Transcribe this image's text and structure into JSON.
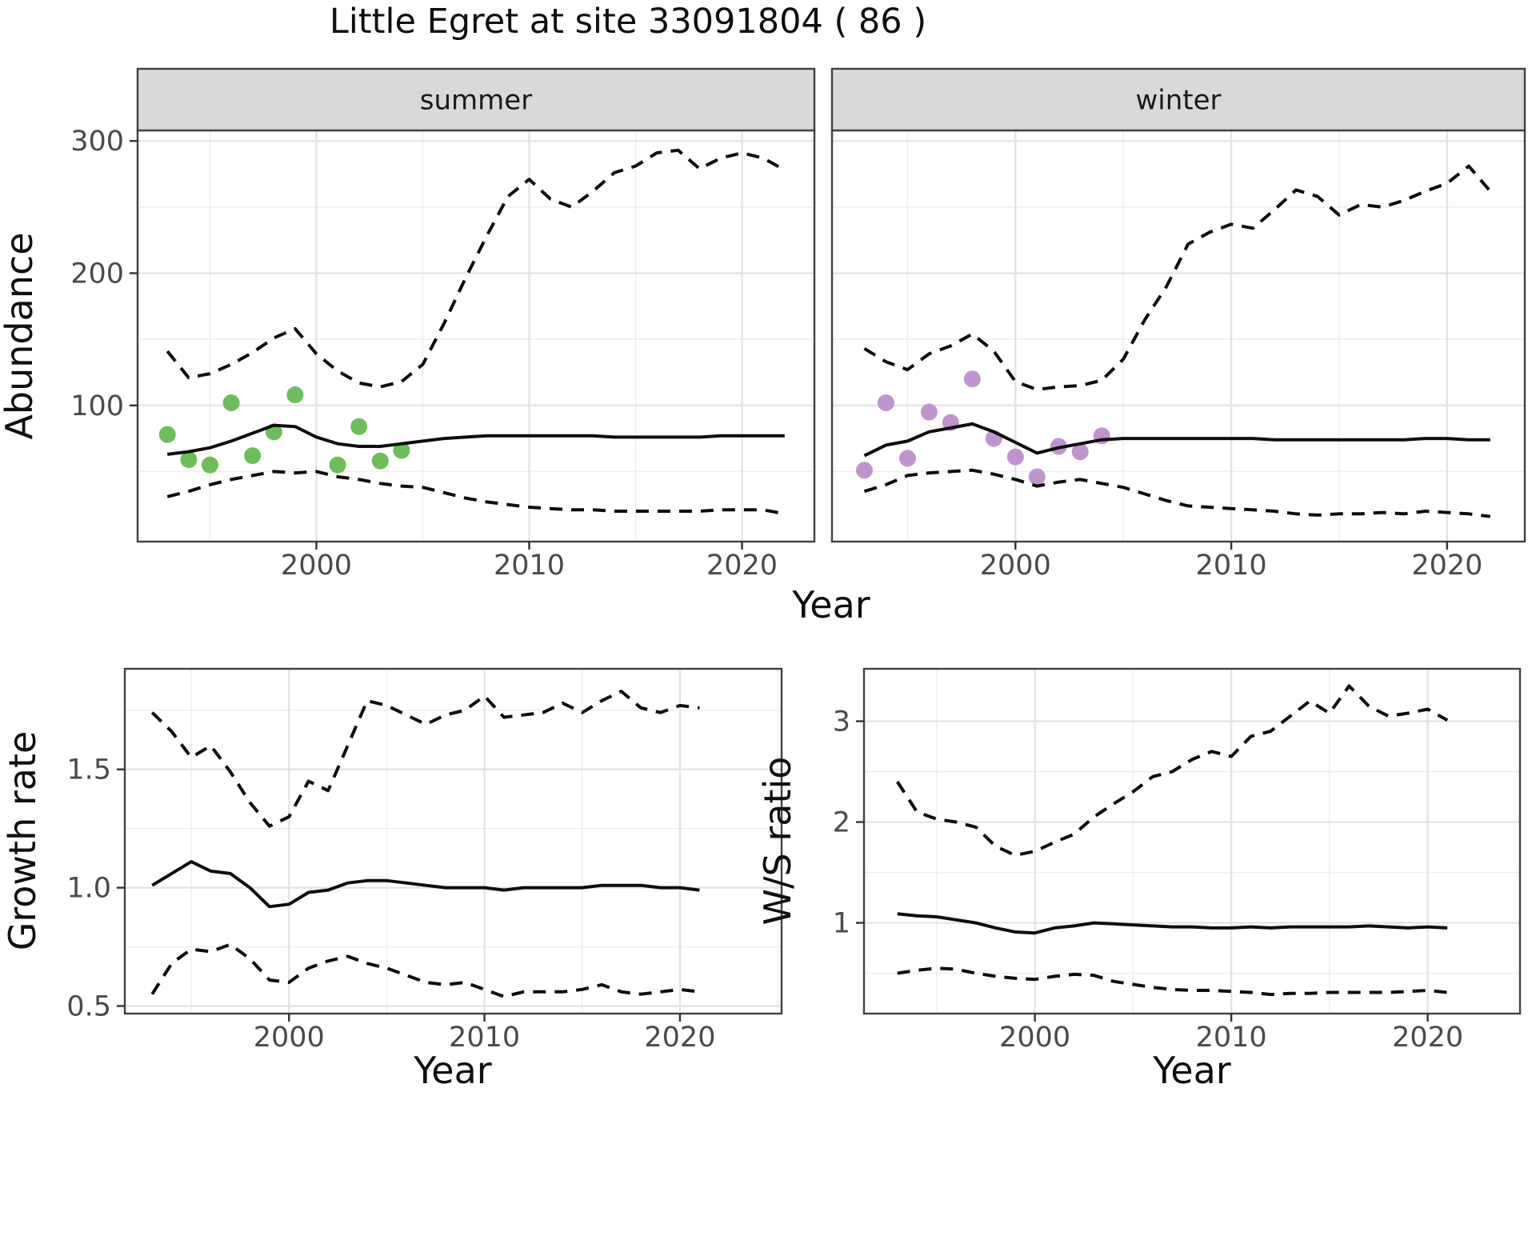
{
  "title": "Little Egret at site 33091804 ( 86 )",
  "colors": {
    "summer_points": "#6dbe5b",
    "winter_points": "#bf94cd",
    "line": "#0d0d0d",
    "strip_bg": "#d9d9d9",
    "panel_border": "#404040",
    "grid_major": "#e2e2e2",
    "grid_minor": "#eeeeee",
    "tick_label": "#4a4a4a",
    "title_text": "#0f0f0f"
  },
  "chart_data": [
    {
      "id": "abundance-summer",
      "type": "line",
      "facet_label": "summer",
      "ylabel": "Abundance",
      "xlabel": "Year",
      "x_domain": [
        1991.6,
        2023.4
      ],
      "y_domain": [
        -3,
        308
      ],
      "x_ticks": {
        "values": [
          2000,
          2010,
          2020
        ],
        "labels": [
          "2000",
          "2010",
          "2020"
        ]
      },
      "y_ticks": {
        "values": [
          100,
          200,
          300
        ],
        "labels": [
          "100",
          "200",
          "300"
        ]
      },
      "x_minor": [
        1995,
        2005,
        2015
      ],
      "y_minor": [
        50,
        150,
        250
      ],
      "grid": true,
      "legend": "none",
      "series": [
        {
          "name": "observations",
          "style": "points",
          "color": "#6dbe5b",
          "x": [
            1993,
            1994,
            1995,
            1996,
            1997,
            1998,
            1999,
            2001,
            2002,
            2003,
            2004
          ],
          "y": [
            78,
            59,
            55,
            102,
            62,
            80,
            108,
            55,
            84,
            58,
            66
          ]
        },
        {
          "name": "upper-ci",
          "style": "dashed",
          "x": [
            1993,
            1994,
            1995,
            1996,
            1997,
            1998,
            1999,
            2000,
            2001,
            2002,
            2003,
            2004,
            2005,
            2006,
            2007,
            2008,
            2009,
            2010,
            2011,
            2012,
            2013,
            2014,
            2015,
            2016,
            2017,
            2018,
            2019,
            2020,
            2021,
            2022
          ],
          "y": [
            141,
            121,
            124,
            131,
            140,
            151,
            158,
            139,
            126,
            117,
            114,
            118,
            131,
            162,
            196,
            228,
            258,
            271,
            256,
            250,
            262,
            276,
            281,
            291,
            293,
            279,
            287,
            291,
            287,
            278
          ]
        },
        {
          "name": "lower-ci",
          "style": "dashed",
          "x": [
            1993,
            1994,
            1995,
            1996,
            1997,
            1998,
            1999,
            2000,
            2001,
            2002,
            2003,
            2004,
            2005,
            2006,
            2007,
            2008,
            2009,
            2010,
            2011,
            2012,
            2013,
            2014,
            2015,
            2016,
            2017,
            2018,
            2019,
            2020,
            2021,
            2022
          ],
          "y": [
            31,
            35,
            40,
            44,
            47,
            50,
            49,
            50,
            46,
            44,
            41,
            39,
            38,
            34,
            30,
            27,
            25,
            23,
            22,
            21,
            21,
            20,
            20,
            20,
            20,
            20,
            21,
            21,
            21,
            18
          ]
        },
        {
          "name": "median",
          "style": "solid",
          "x": [
            1993,
            1994,
            1995,
            1996,
            1997,
            1998,
            1999,
            2000,
            2001,
            2002,
            2003,
            2004,
            2005,
            2006,
            2007,
            2008,
            2009,
            2010,
            2011,
            2012,
            2013,
            2014,
            2015,
            2016,
            2017,
            2018,
            2019,
            2020,
            2021,
            2022
          ],
          "y": [
            63,
            65,
            68,
            73,
            79,
            85,
            84,
            76,
            71,
            69,
            69,
            71,
            73,
            75,
            76,
            77,
            77,
            77,
            77,
            77,
            77,
            76,
            76,
            76,
            76,
            76,
            77,
            77,
            77,
            77
          ]
        }
      ]
    },
    {
      "id": "abundance-winter",
      "type": "line",
      "facet_label": "winter",
      "ylabel": "",
      "xlabel": "",
      "x_domain": [
        1991.5,
        2023.6
      ],
      "y_domain": [
        -3,
        308
      ],
      "x_ticks": {
        "values": [
          2000,
          2010,
          2020
        ],
        "labels": [
          "2000",
          "2010",
          "2020"
        ]
      },
      "y_ticks": {
        "values": [
          100,
          200,
          300
        ],
        "labels": []
      },
      "x_minor": [
        1995,
        2005,
        2015
      ],
      "y_minor": [
        50,
        150,
        250
      ],
      "grid": true,
      "legend": "none",
      "series": [
        {
          "name": "observations",
          "style": "points",
          "color": "#bf94cd",
          "x": [
            1993,
            1994,
            1995,
            1996,
            1997,
            1998,
            1999,
            2000,
            2001,
            2002,
            2003,
            2004
          ],
          "y": [
            51,
            102,
            60,
            95,
            87,
            120,
            75,
            61,
            46,
            69,
            65,
            77
          ]
        },
        {
          "name": "upper-ci",
          "style": "dashed",
          "x": [
            1993,
            1994,
            1995,
            1996,
            1997,
            1998,
            1999,
            2000,
            2001,
            2002,
            2003,
            2004,
            2005,
            2006,
            2007,
            2008,
            2009,
            2010,
            2011,
            2012,
            2013,
            2014,
            2015,
            2016,
            2017,
            2018,
            2019,
            2020,
            2021,
            2022
          ],
          "y": [
            143,
            133,
            127,
            139,
            145,
            154,
            141,
            118,
            112,
            114,
            115,
            119,
            135,
            165,
            190,
            222,
            231,
            237,
            234,
            248,
            263,
            258,
            244,
            252,
            250,
            255,
            262,
            268,
            281,
            262
          ]
        },
        {
          "name": "lower-ci",
          "style": "dashed",
          "x": [
            1993,
            1994,
            1995,
            1996,
            1997,
            1998,
            1999,
            2000,
            2001,
            2002,
            2003,
            2004,
            2005,
            2006,
            2007,
            2008,
            2009,
            2010,
            2011,
            2012,
            2013,
            2014,
            2015,
            2016,
            2017,
            2018,
            2019,
            2020,
            2021,
            2022
          ],
          "y": [
            35,
            40,
            47,
            49,
            50,
            51,
            48,
            44,
            39,
            42,
            44,
            41,
            38,
            33,
            28,
            24,
            23,
            22,
            21,
            20,
            18,
            17,
            18,
            18,
            19,
            18,
            20,
            19,
            18,
            16
          ]
        },
        {
          "name": "median",
          "style": "solid",
          "x": [
            1993,
            1994,
            1995,
            1996,
            1997,
            1998,
            1999,
            2000,
            2001,
            2002,
            2003,
            2004,
            2005,
            2006,
            2007,
            2008,
            2009,
            2010,
            2011,
            2012,
            2013,
            2014,
            2015,
            2016,
            2017,
            2018,
            2019,
            2020,
            2021,
            2022
          ],
          "y": [
            62,
            70,
            73,
            80,
            83,
            86,
            80,
            72,
            64,
            68,
            71,
            74,
            75,
            75,
            75,
            75,
            75,
            75,
            75,
            74,
            74,
            74,
            74,
            74,
            74,
            74,
            75,
            75,
            74,
            74
          ]
        }
      ]
    },
    {
      "id": "growth-rate",
      "type": "line",
      "facet_label": null,
      "ylabel": "Growth rate",
      "xlabel": "Year",
      "x_domain": [
        1991.6,
        2025.2
      ],
      "y_domain": [
        0.468,
        1.925
      ],
      "x_ticks": {
        "values": [
          2000,
          2010,
          2020
        ],
        "labels": [
          "2000",
          "2010",
          "2020"
        ]
      },
      "y_ticks": {
        "values": [
          0.5,
          1.0,
          1.5
        ],
        "labels": [
          "0.5",
          "1.0",
          "1.5"
        ]
      },
      "x_minor": [
        1995,
        2005,
        2015,
        2025
      ],
      "y_minor": [
        0.75,
        1.25,
        1.75
      ],
      "grid": true,
      "legend": "none",
      "series": [
        {
          "name": "upper-ci",
          "style": "dashed",
          "x": [
            1993,
            1994,
            1995,
            1996,
            1997,
            1998,
            1999,
            2000,
            2001,
            2002,
            2003,
            2004,
            2005,
            2006,
            2007,
            2008,
            2009,
            2010,
            2011,
            2012,
            2013,
            2014,
            2015,
            2016,
            2017,
            2018,
            2019,
            2020,
            2021
          ],
          "y": [
            1.74,
            1.66,
            1.55,
            1.6,
            1.49,
            1.36,
            1.26,
            1.3,
            1.45,
            1.41,
            1.6,
            1.79,
            1.77,
            1.73,
            1.69,
            1.73,
            1.75,
            1.81,
            1.72,
            1.73,
            1.74,
            1.78,
            1.74,
            1.79,
            1.83,
            1.76,
            1.74,
            1.77,
            1.76
          ]
        },
        {
          "name": "lower-ci",
          "style": "dashed",
          "x": [
            1993,
            1994,
            1995,
            1996,
            1997,
            1998,
            1999,
            2000,
            2001,
            2002,
            2003,
            2004,
            2005,
            2006,
            2007,
            2008,
            2009,
            2010,
            2011,
            2012,
            2013,
            2014,
            2015,
            2016,
            2017,
            2018,
            2019,
            2020,
            2021
          ],
          "y": [
            0.55,
            0.68,
            0.74,
            0.73,
            0.76,
            0.7,
            0.61,
            0.6,
            0.66,
            0.69,
            0.71,
            0.68,
            0.66,
            0.63,
            0.6,
            0.59,
            0.6,
            0.57,
            0.54,
            0.56,
            0.56,
            0.56,
            0.57,
            0.59,
            0.56,
            0.55,
            0.56,
            0.57,
            0.56
          ]
        },
        {
          "name": "median",
          "style": "solid",
          "x": [
            1993,
            1994,
            1995,
            1996,
            1997,
            1998,
            1999,
            2000,
            2001,
            2002,
            2003,
            2004,
            2005,
            2006,
            2007,
            2008,
            2009,
            2010,
            2011,
            2012,
            2013,
            2014,
            2015,
            2016,
            2017,
            2018,
            2019,
            2020,
            2021
          ],
          "y": [
            1.01,
            1.06,
            1.11,
            1.07,
            1.06,
            1.0,
            0.92,
            0.93,
            0.98,
            0.99,
            1.02,
            1.03,
            1.03,
            1.02,
            1.01,
            1.0,
            1.0,
            1.0,
            0.99,
            1.0,
            1.0,
            1.0,
            1.0,
            1.01,
            1.01,
            1.01,
            1.0,
            1.0,
            0.99
          ]
        }
      ]
    },
    {
      "id": "ws-ratio",
      "type": "line",
      "facet_label": null,
      "ylabel": "W/S ratio",
      "xlabel": "Year",
      "x_domain": [
        1991.3,
        2024.7
      ],
      "y_domain": [
        0.1,
        3.52
      ],
      "x_ticks": {
        "values": [
          2000,
          2010,
          2020
        ],
        "labels": [
          "2000",
          "2010",
          "2020"
        ]
      },
      "y_ticks": {
        "values": [
          1,
          2,
          3
        ],
        "labels": [
          "1",
          "2",
          "3"
        ]
      },
      "x_minor": [
        1995,
        2005,
        2015
      ],
      "y_minor": [
        0.5,
        1.5,
        2.5
      ],
      "grid": true,
      "legend": "none",
      "series": [
        {
          "name": "upper-ci",
          "style": "dashed",
          "x": [
            1993,
            1994,
            1995,
            1996,
            1997,
            1998,
            1999,
            2000,
            2001,
            2002,
            2003,
            2004,
            2005,
            2006,
            2007,
            2008,
            2009,
            2010,
            2011,
            2012,
            2013,
            2014,
            2015,
            2016,
            2017,
            2018,
            2019,
            2020,
            2021
          ],
          "y": [
            2.4,
            2.1,
            2.03,
            2.0,
            1.95,
            1.76,
            1.67,
            1.71,
            1.8,
            1.88,
            2.05,
            2.18,
            2.3,
            2.45,
            2.5,
            2.62,
            2.7,
            2.65,
            2.85,
            2.9,
            3.05,
            3.2,
            3.08,
            3.35,
            3.15,
            3.05,
            3.08,
            3.12,
            3.01
          ]
        },
        {
          "name": "lower-ci",
          "style": "dashed",
          "x": [
            1993,
            1994,
            1995,
            1996,
            1997,
            1998,
            1999,
            2000,
            2001,
            2002,
            2003,
            2004,
            2005,
            2006,
            2007,
            2008,
            2009,
            2010,
            2011,
            2012,
            2013,
            2014,
            2015,
            2016,
            2017,
            2018,
            2019,
            2020,
            2021
          ],
          "y": [
            0.5,
            0.53,
            0.55,
            0.54,
            0.5,
            0.47,
            0.45,
            0.44,
            0.47,
            0.49,
            0.48,
            0.42,
            0.39,
            0.36,
            0.34,
            0.33,
            0.33,
            0.32,
            0.31,
            0.29,
            0.3,
            0.3,
            0.31,
            0.31,
            0.31,
            0.31,
            0.32,
            0.33,
            0.31
          ]
        },
        {
          "name": "median",
          "style": "solid",
          "x": [
            1993,
            1994,
            1995,
            1996,
            1997,
            1998,
            1999,
            2000,
            2001,
            2002,
            2003,
            2004,
            2005,
            2006,
            2007,
            2008,
            2009,
            2010,
            2011,
            2012,
            2013,
            2014,
            2015,
            2016,
            2017,
            2018,
            2019,
            2020,
            2021
          ],
          "y": [
            1.09,
            1.07,
            1.06,
            1.03,
            1.0,
            0.95,
            0.91,
            0.9,
            0.95,
            0.97,
            1.0,
            0.99,
            0.98,
            0.97,
            0.96,
            0.96,
            0.95,
            0.95,
            0.96,
            0.95,
            0.96,
            0.96,
            0.96,
            0.96,
            0.97,
            0.96,
            0.95,
            0.96,
            0.95
          ]
        }
      ]
    }
  ]
}
